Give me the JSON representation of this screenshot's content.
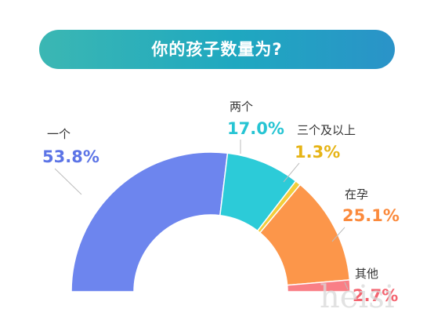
{
  "header": {
    "title": "你的孩子数量为?"
  },
  "chart_data": {
    "type": "pie",
    "variant": "half-donut",
    "title": "你的孩子数量为?",
    "categories": [
      "一个",
      "两个",
      "三个及以上",
      "在孕",
      "其他"
    ],
    "values": [
      53.8,
      17.0,
      1.3,
      25.1,
      2.7
    ],
    "value_labels": [
      "53.8%",
      "17.0%",
      "1.3%",
      "25.1%",
      "2.7%"
    ],
    "unit": "%",
    "colors": [
      "#6d85ee",
      "#2ccbd8",
      "#f2cd3a",
      "#fc964a",
      "#f97f86"
    ],
    "label_colors": [
      "#5c74e6",
      "#26c4d3",
      "#e6b416",
      "#fb8a3c",
      "#f46470"
    ],
    "legend": "none"
  },
  "watermark": "heisi"
}
